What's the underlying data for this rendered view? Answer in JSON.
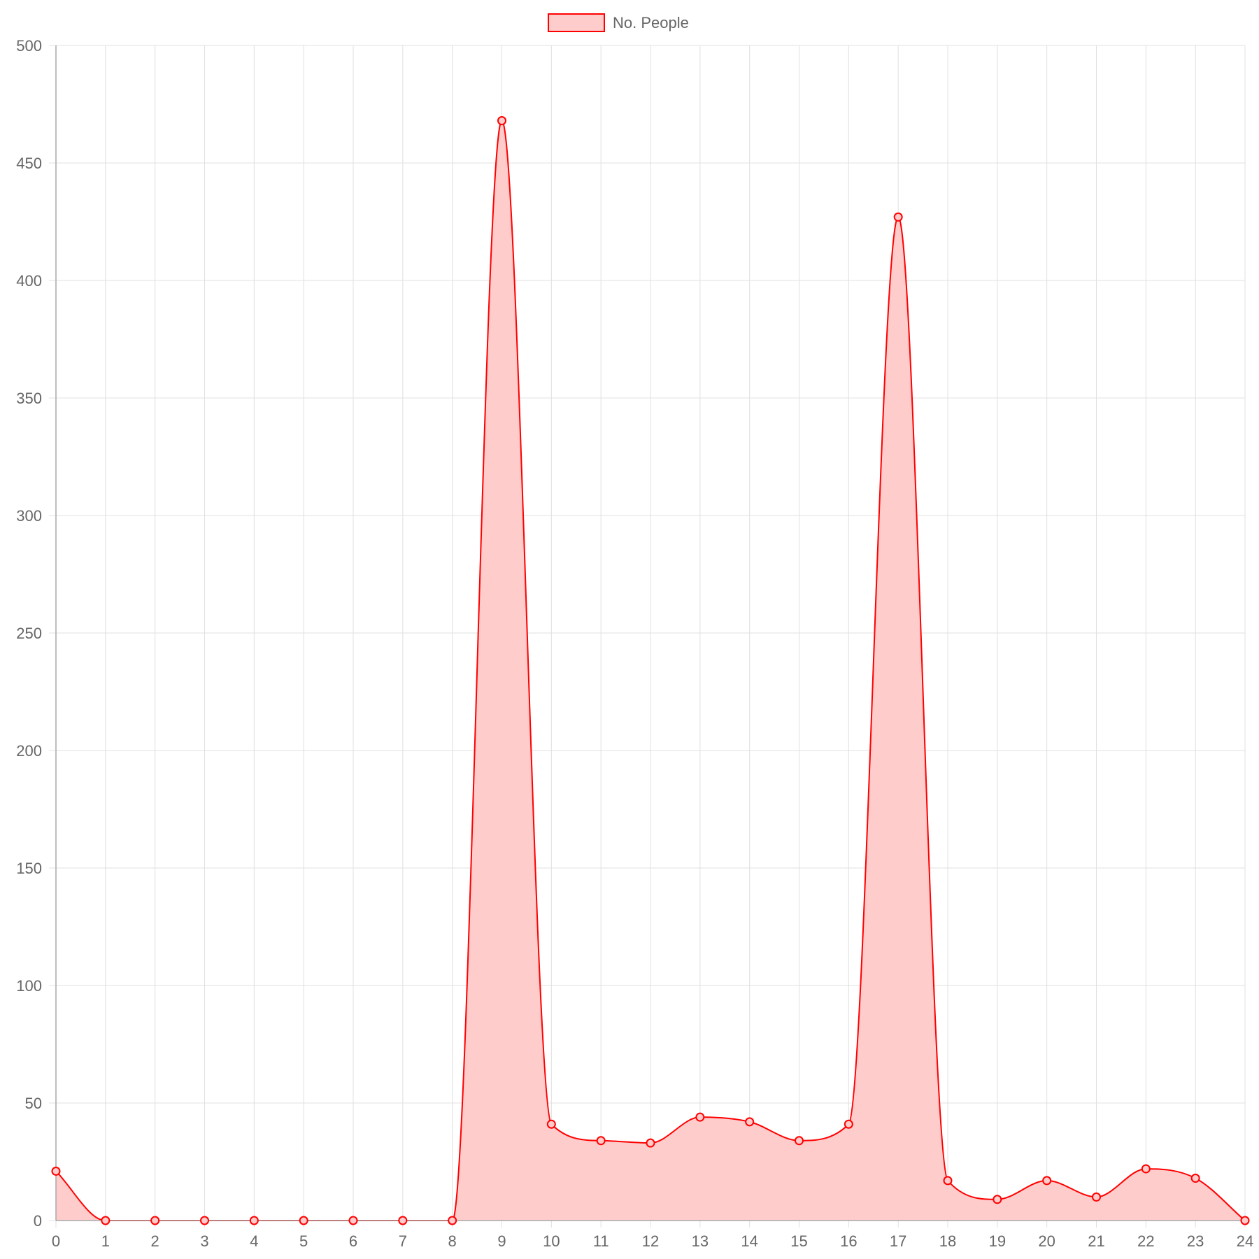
{
  "chart_data": {
    "type": "area",
    "x": [
      0,
      1,
      2,
      3,
      4,
      5,
      6,
      7,
      8,
      9,
      10,
      11,
      12,
      13,
      14,
      15,
      16,
      17,
      18,
      19,
      20,
      21,
      22,
      23,
      24
    ],
    "series": [
      {
        "name": "No. People",
        "values": [
          21,
          0,
          0,
          0,
          0,
          0,
          0,
          0,
          0,
          468,
          41,
          34,
          33,
          44,
          42,
          34,
          41,
          427,
          17,
          9,
          17,
          10,
          22,
          18,
          0
        ],
        "color": "#ff0000",
        "fill": "#ffcccc"
      }
    ],
    "ylim": [
      0,
      500
    ],
    "y_ticks": [
      0,
      50,
      100,
      150,
      200,
      250,
      300,
      350,
      400,
      450,
      500
    ],
    "x_ticks": [
      0,
      1,
      2,
      3,
      4,
      5,
      6,
      7,
      8,
      9,
      10,
      11,
      12,
      13,
      14,
      15,
      16,
      17,
      18,
      19,
      20,
      21,
      22,
      23,
      24
    ],
    "grid": true,
    "legend": "top-center",
    "curve": "smooth",
    "markers": "circle"
  }
}
